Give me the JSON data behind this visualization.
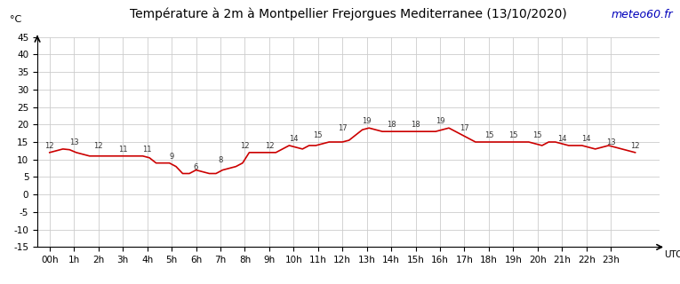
{
  "title": "Température à 2m à Montpellier Frejorgues Mediterranee (13/10/2020)",
  "watermark": "meteo60.fr",
  "ylabel": "°C",
  "xlabel": "UTC",
  "hour_labels": [
    "00h",
    "1h",
    "2h",
    "3h",
    "4h",
    "5h",
    "6h",
    "7h",
    "8h",
    "9h",
    "10h",
    "11h",
    "12h",
    "13h",
    "14h",
    "15h",
    "16h",
    "17h",
    "18h",
    "19h",
    "20h",
    "21h",
    "22h",
    "23h"
  ],
  "temperatures_half": [
    12,
    12.5,
    13,
    12.8,
    12,
    11.5,
    11,
    11.0,
    11,
    11.0,
    11,
    11.0,
    11,
    11.0,
    11,
    10.5,
    9,
    9.0,
    9,
    8.0,
    6,
    6.0,
    7,
    6.5,
    6,
    6.0,
    7,
    7.5,
    8,
    9.0,
    12,
    12.0,
    12,
    12.0,
    12,
    13.0,
    14,
    13.5,
    13,
    14.0,
    14,
    14.5,
    15,
    15.0,
    15,
    15.5,
    17,
    18.5,
    19,
    18.5,
    18,
    18.0,
    18,
    18.0,
    18,
    18.0,
    18,
    18.0,
    18,
    18.5,
    19,
    18.0,
    17,
    16.0,
    15,
    15.0,
    15,
    15.0,
    15,
    15.0,
    15,
    15.0,
    15,
    14.5,
    14,
    15.0,
    15,
    14.5,
    14,
    14.0,
    14,
    13.5,
    13,
    13.5,
    14,
    13.5,
    13,
    12.5,
    12
  ],
  "temp_at_hours": [
    12,
    13,
    12,
    11,
    11,
    9,
    6,
    8,
    12,
    12,
    14,
    15,
    17,
    19,
    18,
    18,
    19,
    17,
    15,
    15,
    15,
    14,
    14,
    13,
    12
  ],
  "ylim": [
    -15,
    45
  ],
  "yticks": [
    -15,
    -10,
    -5,
    0,
    5,
    10,
    15,
    20,
    25,
    30,
    35,
    40,
    45
  ],
  "line_color": "#cc0000",
  "line_width": 1.2,
  "grid_color": "#cccccc",
  "bg_color": "#ffffff",
  "title_fontsize": 10,
  "tick_fontsize": 7.5,
  "label_fontsize": 8,
  "watermark_color": "#0000bb"
}
